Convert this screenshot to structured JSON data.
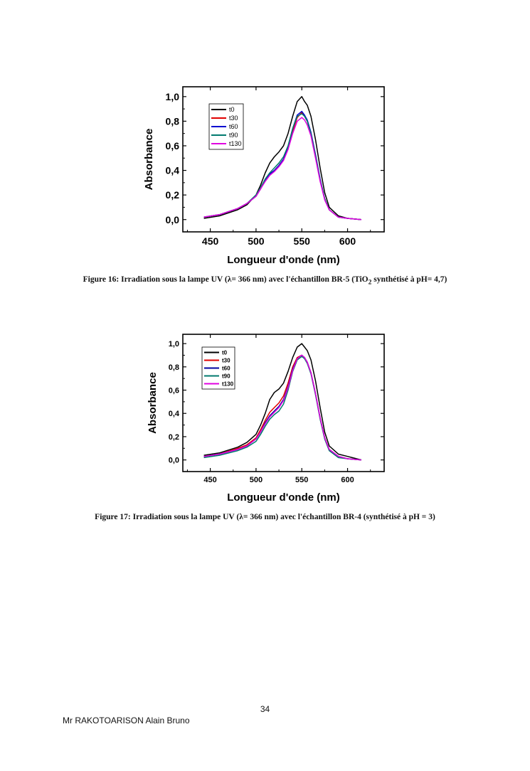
{
  "figures": [
    {
      "caption_pre": "Figure 16:  Irradiation sous la lampe UV (λ= 366 nm) avec l'échantillon BR-5 (TiO",
      "caption_sub": "2",
      "caption_post": " synthétisé à pH= 4,7)"
    },
    {
      "caption_pre": "Figure 17: Irradiation sous la lampe UV (λ= 366 nm) avec l'échantillon BR-4 (synthétisé à pH = 3)",
      "caption_sub": "",
      "caption_post": ""
    }
  ],
  "footer": {
    "page_number": "34",
    "author": "Mr RAKOTOARISON Alain Bruno"
  },
  "chart_data": [
    {
      "type": "line",
      "xlabel": "Longueur d'onde (nm)",
      "ylabel": "Absorbance",
      "xlim": [
        420,
        640
      ],
      "ylim": [
        -0.1,
        1.08
      ],
      "xticks": [
        450,
        500,
        550,
        600
      ],
      "xtick_labels": [
        "450",
        "500",
        "550",
        "600"
      ],
      "yticks": [
        0.0,
        0.2,
        0.4,
        0.6,
        0.8,
        1.0
      ],
      "ytick_labels": [
        "0,0",
        "0,2",
        "0,4",
        "0,6",
        "0,8",
        "1,0"
      ],
      "legend_position": "top-left",
      "series": [
        {
          "name": "t0",
          "color": "#000000",
          "x": [
            443,
            460,
            480,
            490,
            500,
            505,
            510,
            515,
            520,
            525,
            530,
            535,
            540,
            545,
            550,
            553,
            556,
            560,
            565,
            570,
            575,
            580,
            590,
            600,
            615
          ],
          "y": [
            0.01,
            0.03,
            0.08,
            0.12,
            0.2,
            0.28,
            0.38,
            0.46,
            0.51,
            0.55,
            0.6,
            0.7,
            0.84,
            0.96,
            1.0,
            0.96,
            0.93,
            0.84,
            0.65,
            0.42,
            0.22,
            0.1,
            0.03,
            0.01,
            0.0
          ]
        },
        {
          "name": "t30",
          "color": "#e00000",
          "x": [
            443,
            460,
            480,
            490,
            500,
            505,
            510,
            515,
            520,
            525,
            530,
            535,
            540,
            545,
            550,
            553,
            556,
            560,
            565,
            570,
            575,
            580,
            590,
            600,
            615
          ],
          "y": [
            0.02,
            0.04,
            0.09,
            0.13,
            0.19,
            0.25,
            0.32,
            0.37,
            0.4,
            0.44,
            0.49,
            0.58,
            0.72,
            0.83,
            0.87,
            0.84,
            0.8,
            0.7,
            0.52,
            0.32,
            0.17,
            0.08,
            0.02,
            0.01,
            0.0
          ]
        },
        {
          "name": "t60",
          "color": "#0000d0",
          "x": [
            443,
            460,
            480,
            490,
            500,
            505,
            510,
            515,
            520,
            525,
            530,
            535,
            540,
            545,
            550,
            553,
            556,
            560,
            565,
            570,
            575,
            580,
            590,
            600,
            615
          ],
          "y": [
            0.02,
            0.04,
            0.09,
            0.13,
            0.19,
            0.25,
            0.32,
            0.37,
            0.4,
            0.44,
            0.49,
            0.59,
            0.74,
            0.85,
            0.88,
            0.85,
            0.81,
            0.71,
            0.53,
            0.33,
            0.17,
            0.08,
            0.02,
            0.01,
            0.0
          ]
        },
        {
          "name": "t90",
          "color": "#007a6e",
          "x": [
            443,
            460,
            480,
            490,
            500,
            505,
            510,
            515,
            520,
            525,
            530,
            535,
            540,
            545,
            550,
            553,
            556,
            560,
            565,
            570,
            575,
            580,
            590,
            600,
            615
          ],
          "y": [
            0.02,
            0.04,
            0.09,
            0.13,
            0.2,
            0.26,
            0.33,
            0.38,
            0.42,
            0.46,
            0.51,
            0.6,
            0.74,
            0.84,
            0.86,
            0.84,
            0.8,
            0.7,
            0.52,
            0.32,
            0.17,
            0.08,
            0.02,
            0.01,
            0.0
          ]
        },
        {
          "name": "t130",
          "color": "#e000e0",
          "x": [
            443,
            460,
            480,
            490,
            500,
            505,
            510,
            515,
            520,
            525,
            530,
            535,
            540,
            545,
            550,
            553,
            556,
            560,
            565,
            570,
            575,
            580,
            590,
            600,
            615
          ],
          "y": [
            0.02,
            0.04,
            0.09,
            0.13,
            0.19,
            0.25,
            0.31,
            0.36,
            0.39,
            0.43,
            0.48,
            0.57,
            0.7,
            0.8,
            0.83,
            0.81,
            0.77,
            0.68,
            0.5,
            0.31,
            0.16,
            0.08,
            0.02,
            0.01,
            0.0
          ]
        }
      ]
    },
    {
      "type": "line",
      "xlabel": "Longueur d'onde (nm)",
      "ylabel": "Absorbance",
      "xlim": [
        420,
        640
      ],
      "ylim": [
        -0.1,
        1.08
      ],
      "xticks": [
        450,
        500,
        550,
        600
      ],
      "xtick_labels": [
        "450",
        "500",
        "550",
        "600"
      ],
      "yticks": [
        0.0,
        0.2,
        0.4,
        0.6,
        0.8,
        1.0
      ],
      "ytick_labels": [
        "0,0",
        "0,2",
        "0,4",
        "0,6",
        "0,8",
        "1,0"
      ],
      "legend_position": "top-left",
      "series": [
        {
          "name": "t0",
          "color": "#000000",
          "x": [
            443,
            460,
            480,
            490,
            500,
            505,
            510,
            515,
            520,
            525,
            530,
            535,
            540,
            545,
            550,
            553,
            556,
            560,
            565,
            570,
            575,
            580,
            590,
            600,
            605,
            615
          ],
          "y": [
            0.04,
            0.06,
            0.11,
            0.15,
            0.22,
            0.3,
            0.4,
            0.52,
            0.58,
            0.61,
            0.66,
            0.76,
            0.88,
            0.97,
            1.0,
            0.97,
            0.94,
            0.86,
            0.68,
            0.45,
            0.24,
            0.12,
            0.05,
            0.03,
            0.02,
            0.0
          ]
        },
        {
          "name": "t30",
          "color": "#e00000",
          "x": [
            443,
            460,
            480,
            490,
            500,
            505,
            510,
            515,
            520,
            525,
            530,
            535,
            540,
            545,
            550,
            553,
            556,
            560,
            565,
            570,
            575,
            580,
            590,
            600,
            615
          ],
          "y": [
            0.03,
            0.05,
            0.1,
            0.13,
            0.19,
            0.26,
            0.34,
            0.41,
            0.45,
            0.49,
            0.55,
            0.66,
            0.8,
            0.88,
            0.9,
            0.88,
            0.84,
            0.75,
            0.57,
            0.36,
            0.19,
            0.09,
            0.03,
            0.01,
            0.0
          ]
        },
        {
          "name": "t60",
          "color": "#0000a0",
          "x": [
            443,
            460,
            480,
            490,
            500,
            505,
            510,
            515,
            520,
            525,
            530,
            535,
            540,
            545,
            550,
            553,
            556,
            560,
            565,
            570,
            575,
            580,
            590,
            600,
            615
          ],
          "y": [
            0.03,
            0.05,
            0.09,
            0.12,
            0.18,
            0.24,
            0.32,
            0.38,
            0.42,
            0.46,
            0.52,
            0.63,
            0.78,
            0.87,
            0.9,
            0.88,
            0.84,
            0.75,
            0.57,
            0.36,
            0.19,
            0.09,
            0.03,
            0.01,
            0.0
          ]
        },
        {
          "name": "t90",
          "color": "#007a6e",
          "x": [
            443,
            460,
            480,
            490,
            500,
            505,
            510,
            515,
            520,
            525,
            530,
            535,
            540,
            545,
            550,
            553,
            556,
            560,
            565,
            570,
            575,
            580,
            590,
            600,
            615
          ],
          "y": [
            0.02,
            0.04,
            0.08,
            0.11,
            0.16,
            0.22,
            0.29,
            0.35,
            0.39,
            0.42,
            0.48,
            0.6,
            0.76,
            0.86,
            0.89,
            0.87,
            0.83,
            0.74,
            0.56,
            0.35,
            0.18,
            0.08,
            0.02,
            0.01,
            0.0
          ]
        },
        {
          "name": "t130",
          "color": "#e000e0",
          "x": [
            443,
            460,
            480,
            490,
            500,
            505,
            510,
            515,
            520,
            525,
            530,
            535,
            540,
            545,
            550,
            553,
            556,
            560,
            565,
            570,
            575,
            580,
            590,
            600,
            615
          ],
          "y": [
            0.03,
            0.05,
            0.09,
            0.12,
            0.18,
            0.24,
            0.31,
            0.37,
            0.41,
            0.45,
            0.51,
            0.62,
            0.77,
            0.87,
            0.9,
            0.88,
            0.84,
            0.75,
            0.57,
            0.36,
            0.19,
            0.09,
            0.03,
            0.01,
            0.0
          ]
        }
      ]
    }
  ]
}
